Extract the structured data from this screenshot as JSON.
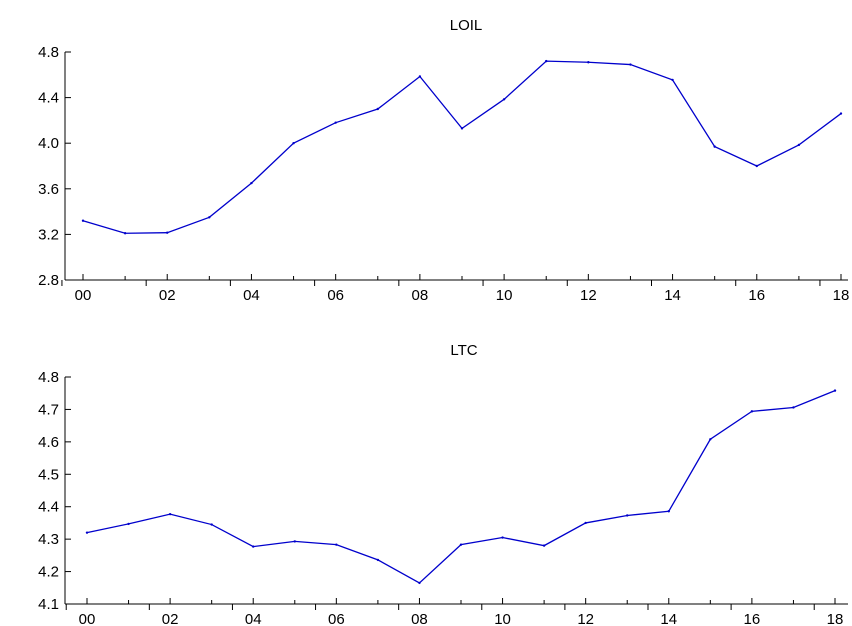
{
  "chart_data": [
    {
      "type": "line",
      "title": "LOIL",
      "x": [
        2000,
        2001,
        2002,
        2003,
        2004,
        2005,
        2006,
        2007,
        2008,
        2009,
        2010,
        2011,
        2012,
        2013,
        2014,
        2015,
        2016,
        2017,
        2018
      ],
      "series": [
        {
          "values": [
            3.32,
            3.21,
            3.215,
            3.35,
            3.65,
            4.0,
            4.18,
            4.3,
            4.585,
            4.13,
            4.385,
            4.72,
            4.71,
            4.69,
            4.555,
            3.97,
            3.8,
            3.985,
            4.26
          ]
        }
      ],
      "xtick_values": [
        2000,
        2002,
        2004,
        2006,
        2008,
        2010,
        2012,
        2014,
        2016,
        2018
      ],
      "xtick_labels": [
        "00",
        "02",
        "04",
        "06",
        "08",
        "10",
        "12",
        "14",
        "16",
        "18"
      ],
      "yticks": [
        "2.8",
        "3.2",
        "3.6",
        "4.0",
        "4.4",
        "4.8"
      ],
      "ylim": [
        2.8,
        4.8
      ],
      "color": "#0000cc"
    },
    {
      "type": "line",
      "title": "LTC",
      "x": [
        2000,
        2001,
        2002,
        2003,
        2004,
        2005,
        2006,
        2007,
        2008,
        2009,
        2010,
        2011,
        2012,
        2013,
        2014,
        2015,
        2016,
        2017,
        2018
      ],
      "series": [
        {
          "values": [
            4.32,
            4.347,
            4.377,
            4.345,
            4.277,
            4.293,
            4.283,
            4.236,
            4.165,
            4.283,
            4.305,
            4.28,
            4.35,
            4.373,
            4.386,
            4.608,
            4.694,
            4.706,
            4.758
          ]
        }
      ],
      "xtick_values": [
        2000,
        2002,
        2004,
        2006,
        2008,
        2010,
        2012,
        2014,
        2016,
        2018
      ],
      "xtick_labels": [
        "00",
        "02",
        "04",
        "06",
        "08",
        "10",
        "12",
        "14",
        "16",
        "18"
      ],
      "yticks": [
        "4.1",
        "4.2",
        "4.3",
        "4.4",
        "4.5",
        "4.6",
        "4.7",
        "4.8"
      ],
      "ylim": [
        4.1,
        4.8
      ],
      "color": "#0000cc"
    }
  ]
}
